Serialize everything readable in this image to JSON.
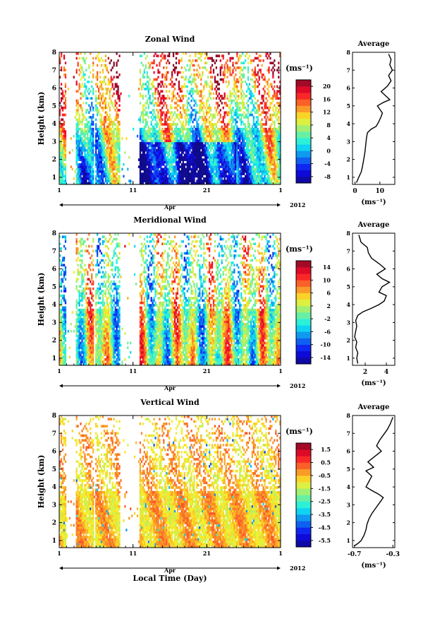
{
  "chart_data": [
    {
      "type": "heatmap",
      "title": "Zonal Wind",
      "ylabel": "Height (km)",
      "xlim": [
        1,
        31
      ],
      "ylim": [
        0.6,
        8
      ],
      "x_ticks": [
        "1",
        "11",
        "21",
        "1"
      ],
      "y_ticks": [
        "1",
        "2",
        "3",
        "4",
        "5",
        "6",
        "7",
        "8"
      ],
      "month_label": "Apr",
      "year_label": "2012",
      "colorbar": {
        "unit": "(ms⁻¹)",
        "ticks": [
          "20",
          "16",
          "12",
          "8",
          "4",
          "0",
          "-4",
          "-8"
        ],
        "min": -10,
        "max": 22
      },
      "average_profile": {
        "title": "Average",
        "xlabel": "(ms⁻¹)",
        "xlim": [
          -1,
          16
        ],
        "x_ticks": [
          "0",
          "10"
        ],
        "points": [
          [
            0.6,
            0.7
          ],
          [
            1.5,
            1.0
          ],
          [
            2.5,
            1.3
          ],
          [
            3.0,
            1.6
          ],
          [
            3.5,
            2.0
          ],
          [
            4.0,
            2.4
          ],
          [
            4.3,
            2.8
          ],
          [
            4.6,
            3.2
          ],
          [
            5.0,
            3.5
          ],
          [
            6.5,
            3.7
          ],
          [
            8.5,
            3.85
          ],
          [
            9.5,
            4.1
          ],
          [
            10.5,
            4.4
          ],
          [
            11.0,
            4.6
          ],
          [
            10.0,
            4.8
          ],
          [
            9.0,
            5.0
          ],
          [
            11.5,
            5.2
          ],
          [
            14.0,
            5.35
          ],
          [
            12.0,
            5.6
          ],
          [
            10.5,
            5.8
          ],
          [
            13.0,
            6.1
          ],
          [
            14.5,
            6.4
          ],
          [
            13.5,
            6.7
          ],
          [
            15.0,
            7.0
          ],
          [
            14.0,
            7.3
          ],
          [
            14.5,
            7.6
          ],
          [
            13.5,
            7.9
          ]
        ]
      }
    },
    {
      "type": "heatmap",
      "title": "Meridional Wind",
      "ylabel": "Height (km)",
      "xlim": [
        1,
        31
      ],
      "ylim": [
        0.6,
        8
      ],
      "x_ticks": [
        "1",
        "11",
        "21",
        "1"
      ],
      "y_ticks": [
        "1",
        "2",
        "3",
        "4",
        "5",
        "6",
        "7",
        "8"
      ],
      "month_label": "Apr",
      "year_label": "2012",
      "colorbar": {
        "unit": "(ms⁻¹)",
        "ticks": [
          "14",
          "10",
          "6",
          "2",
          "-2",
          "-6",
          "-10",
          "-14"
        ],
        "min": -16,
        "max": 16
      },
      "average_profile": {
        "title": "Average",
        "xlabel": "(ms⁻¹)",
        "xlim": [
          0.8,
          4.8
        ],
        "x_ticks": [
          "2",
          "4"
        ],
        "points": [
          [
            1.3,
            0.7
          ],
          [
            1.2,
            1.0
          ],
          [
            1.3,
            1.3
          ],
          [
            1.1,
            1.6
          ],
          [
            1.2,
            1.9
          ],
          [
            1.0,
            2.2
          ],
          [
            1.1,
            2.5
          ],
          [
            1.2,
            2.8
          ],
          [
            1.1,
            3.1
          ],
          [
            1.3,
            3.4
          ],
          [
            1.8,
            3.6
          ],
          [
            2.6,
            3.8
          ],
          [
            3.3,
            4.0
          ],
          [
            3.8,
            4.2
          ],
          [
            4.0,
            4.5
          ],
          [
            3.3,
            4.7
          ],
          [
            3.6,
            5.0
          ],
          [
            4.3,
            5.25
          ],
          [
            3.6,
            5.45
          ],
          [
            3.1,
            5.7
          ],
          [
            3.9,
            6.0
          ],
          [
            3.3,
            6.3
          ],
          [
            2.6,
            6.6
          ],
          [
            2.3,
            6.9
          ],
          [
            2.2,
            7.2
          ],
          [
            1.6,
            7.5
          ],
          [
            1.4,
            7.9
          ]
        ]
      }
    },
    {
      "type": "heatmap",
      "title": "Vertical Wind",
      "ylabel": "Height (km)",
      "xlabel": "Local Time (Day)",
      "xlim": [
        1,
        31
      ],
      "ylim": [
        0.6,
        8
      ],
      "x_ticks": [
        "1",
        "11",
        "21",
        "1"
      ],
      "y_ticks": [
        "1",
        "2",
        "3",
        "4",
        "5",
        "6",
        "7",
        "8"
      ],
      "month_label": "Apr",
      "year_label": "2012",
      "colorbar": {
        "unit": "(ms⁻¹)",
        "ticks": [
          "1.5",
          "0.5",
          "-0.5",
          "-1.5",
          "-2.5",
          "-3.5",
          "-4.5",
          "-5.5"
        ],
        "min": -6,
        "max": 2
      },
      "average_profile": {
        "title": "Average",
        "xlabel": "(ms⁻¹)",
        "xlim": [
          -0.72,
          -0.28
        ],
        "x_ticks": [
          "-0.7",
          "-0.3"
        ],
        "points": [
          [
            -0.7,
            0.7
          ],
          [
            -0.66,
            0.85
          ],
          [
            -0.63,
            1.0
          ],
          [
            -0.6,
            1.3
          ],
          [
            -0.58,
            1.6
          ],
          [
            -0.57,
            1.9
          ],
          [
            -0.55,
            2.2
          ],
          [
            -0.52,
            2.5
          ],
          [
            -0.48,
            2.8
          ],
          [
            -0.44,
            3.1
          ],
          [
            -0.4,
            3.4
          ],
          [
            -0.45,
            3.6
          ],
          [
            -0.52,
            3.8
          ],
          [
            -0.58,
            4.0
          ],
          [
            -0.55,
            4.3
          ],
          [
            -0.52,
            4.6
          ],
          [
            -0.58,
            4.9
          ],
          [
            -0.5,
            5.1
          ],
          [
            -0.56,
            5.4
          ],
          [
            -0.49,
            5.7
          ],
          [
            -0.42,
            6.0
          ],
          [
            -0.47,
            6.3
          ],
          [
            -0.44,
            6.6
          ],
          [
            -0.4,
            6.9
          ],
          [
            -0.36,
            7.2
          ],
          [
            -0.33,
            7.5
          ],
          [
            -0.3,
            7.9
          ]
        ]
      }
    }
  ]
}
